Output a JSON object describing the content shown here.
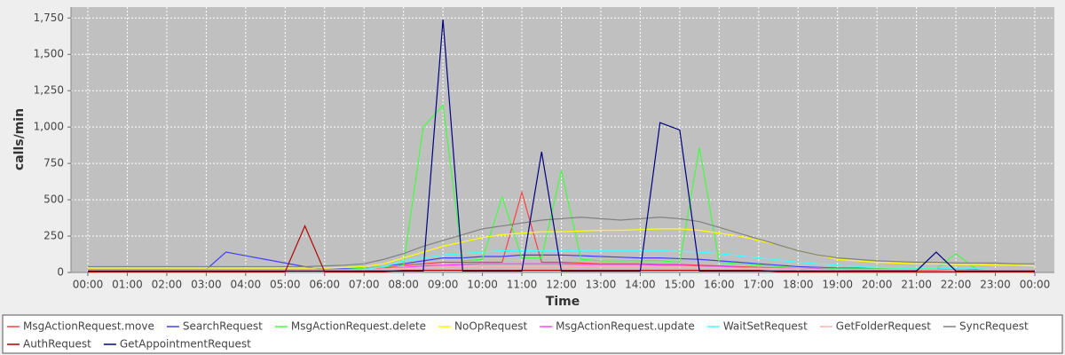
{
  "chart_data": {
    "type": "line",
    "x_label": "Time",
    "y_label": "calls/min",
    "x": [
      "00:00",
      "00:30",
      "01:00",
      "01:30",
      "02:00",
      "02:30",
      "03:00",
      "03:30",
      "04:00",
      "04:30",
      "05:00",
      "05:30",
      "06:00",
      "06:30",
      "07:00",
      "07:30",
      "08:00",
      "08:30",
      "09:00",
      "09:30",
      "10:00",
      "10:30",
      "11:00",
      "11:30",
      "12:00",
      "12:30",
      "13:00",
      "13:30",
      "14:00",
      "14:30",
      "15:00",
      "15:30",
      "16:00",
      "16:30",
      "17:00",
      "17:30",
      "18:00",
      "18:30",
      "19:00",
      "19:30",
      "20:00",
      "20:30",
      "21:00",
      "21:30",
      "22:00",
      "22:30",
      "23:00",
      "23:30",
      "00:00"
    ],
    "ylim": [
      0,
      1825
    ],
    "yticks": [
      0,
      250,
      500,
      750,
      {
        "value": 1000,
        "label": "1,000"
      },
      {
        "value": 1250,
        "label": "1,250"
      },
      {
        "value": 1500,
        "label": "1,500"
      },
      {
        "value": 1750,
        "label": "1,750"
      }
    ],
    "grid": true,
    "legend": "bottom",
    "series": [
      {
        "name": "MsgActionRequest.move",
        "color": "#ff4040",
        "values": [
          10,
          10,
          10,
          10,
          10,
          10,
          10,
          10,
          10,
          10,
          10,
          10,
          10,
          10,
          20,
          30,
          50,
          60,
          70,
          70,
          70,
          70,
          550,
          70,
          70,
          65,
          60,
          60,
          60,
          55,
          55,
          50,
          45,
          40,
          35,
          30,
          25,
          20,
          20,
          15,
          15,
          15,
          15,
          15,
          15,
          10,
          10,
          10,
          10
        ]
      },
      {
        "name": "SearchRequest",
        "color": "#4040ff",
        "values": [
          20,
          20,
          20,
          20,
          20,
          20,
          20,
          140,
          115,
          90,
          65,
          40,
          20,
          25,
          30,
          40,
          60,
          80,
          100,
          100,
          110,
          110,
          120,
          120,
          120,
          115,
          110,
          105,
          100,
          100,
          95,
          90,
          80,
          70,
          60,
          50,
          40,
          35,
          30,
          30,
          25,
          25,
          25,
          25,
          25,
          20,
          20,
          20,
          20
        ]
      },
      {
        "name": "MsgActionRequest.delete",
        "color": "#40ff40",
        "values": [
          20,
          20,
          20,
          20,
          20,
          20,
          20,
          20,
          20,
          20,
          20,
          20,
          20,
          20,
          30,
          40,
          50,
          1000,
          1150,
          80,
          90,
          520,
          100,
          100,
          700,
          90,
          80,
          80,
          80,
          80,
          70,
          860,
          70,
          60,
          50,
          40,
          30,
          30,
          25,
          25,
          25,
          25,
          25,
          25,
          130,
          25,
          20,
          20,
          20
        ]
      },
      {
        "name": "NoOpRequest",
        "color": "#ffff00",
        "values": [
          30,
          30,
          30,
          30,
          30,
          30,
          30,
          30,
          30,
          30,
          30,
          30,
          30,
          35,
          40,
          60,
          100,
          140,
          180,
          210,
          240,
          260,
          270,
          280,
          280,
          285,
          290,
          290,
          295,
          300,
          300,
          290,
          270,
          250,
          220,
          190,
          150,
          120,
          90,
          80,
          70,
          65,
          60,
          60,
          55,
          55,
          50,
          50,
          45
        ]
      },
      {
        "name": "MsgActionRequest.update",
        "color": "#ff40ff",
        "values": [
          15,
          15,
          15,
          15,
          15,
          15,
          15,
          15,
          15,
          15,
          15,
          15,
          15,
          15,
          20,
          25,
          35,
          45,
          50,
          55,
          60,
          60,
          60,
          60,
          60,
          55,
          55,
          55,
          55,
          50,
          50,
          45,
          40,
          35,
          30,
          30,
          25,
          25,
          20,
          20,
          20,
          20,
          20,
          20,
          20,
          15,
          15,
          15,
          15
        ]
      },
      {
        "name": "WaitSetRequest",
        "color": "#40ffff",
        "values": [
          10,
          10,
          10,
          10,
          10,
          10,
          10,
          10,
          10,
          10,
          10,
          10,
          10,
          10,
          20,
          40,
          80,
          100,
          120,
          130,
          140,
          150,
          150,
          150,
          150,
          150,
          150,
          150,
          150,
          150,
          145,
          140,
          130,
          115,
          100,
          85,
          70,
          60,
          50,
          40,
          35,
          30,
          30,
          30,
          25,
          25,
          20,
          20,
          20
        ]
      },
      {
        "name": "GetFolderRequest",
        "color": "#ffb0b0",
        "values": [
          15,
          15,
          15,
          15,
          15,
          15,
          15,
          15,
          15,
          15,
          15,
          15,
          15,
          15,
          20,
          25,
          30,
          35,
          40,
          40,
          40,
          40,
          40,
          40,
          40,
          40,
          40,
          40,
          40,
          40,
          40,
          35,
          35,
          30,
          30,
          25,
          25,
          20,
          20,
          20,
          20,
          20,
          20,
          20,
          15,
          15,
          15,
          15,
          15
        ]
      },
      {
        "name": "SyncRequest",
        "color": "#808080",
        "values": [
          40,
          40,
          40,
          40,
          40,
          40,
          40,
          40,
          40,
          40,
          40,
          40,
          45,
          50,
          60,
          90,
          130,
          180,
          220,
          260,
          300,
          320,
          340,
          360,
          370,
          380,
          370,
          360,
          370,
          380,
          370,
          350,
          310,
          270,
          230,
          190,
          150,
          120,
          100,
          90,
          80,
          75,
          70,
          70,
          65,
          65,
          65,
          60,
          60
        ]
      },
      {
        "name": "AuthRequest",
        "color": "#b00000",
        "values": [
          5,
          5,
          5,
          5,
          5,
          5,
          5,
          5,
          5,
          5,
          5,
          320,
          5,
          5,
          5,
          5,
          15,
          15,
          15,
          15,
          15,
          15,
          15,
          15,
          15,
          15,
          15,
          15,
          15,
          15,
          15,
          15,
          15,
          15,
          15,
          5,
          5,
          5,
          5,
          5,
          5,
          5,
          5,
          5,
          5,
          5,
          5,
          5,
          5
        ]
      },
      {
        "name": "GetAppointmentRequest",
        "color": "#000080",
        "values": [
          10,
          10,
          10,
          10,
          10,
          10,
          10,
          10,
          10,
          10,
          10,
          10,
          10,
          10,
          10,
          10,
          10,
          10,
          1740,
          10,
          10,
          10,
          10,
          830,
          10,
          10,
          10,
          10,
          10,
          1030,
          980,
          10,
          10,
          10,
          10,
          10,
          10,
          10,
          10,
          10,
          10,
          10,
          10,
          140,
          10,
          10,
          10,
          10,
          10
        ]
      }
    ]
  }
}
